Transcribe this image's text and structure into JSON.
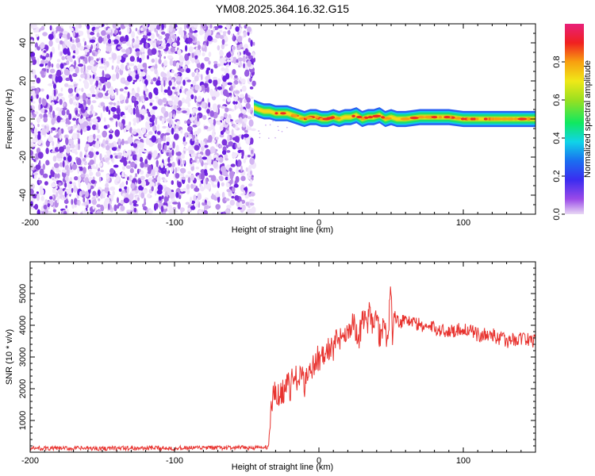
{
  "title": "YM08.2025.364.16.32.G15",
  "chart_data": [
    {
      "type": "heatmap",
      "title": "YM08.2025.364.16.32.G15",
      "xlabel": "Height of straight line (km)",
      "ylabel": "Frequency (Hz)",
      "xlim": [
        -200,
        150
      ],
      "ylim": [
        -50,
        50
      ],
      "x_ticks": [
        -200,
        -100,
        0,
        100
      ],
      "x_tick_labels": [
        "-200",
        "-100",
        "0",
        "100"
      ],
      "y_ticks": [
        -40,
        -20,
        0,
        20,
        40
      ],
      "y_tick_labels": [
        "-40",
        "-20",
        "0",
        "20",
        "40"
      ],
      "noise_region_x": [
        -200,
        -45
      ],
      "signal_region_x": [
        -45,
        150
      ],
      "signal_center_freq_hz": [
        [
          -45,
          6
        ],
        [
          -42,
          5
        ],
        [
          -38,
          4
        ],
        [
          -34,
          4
        ],
        [
          -30,
          3
        ],
        [
          -26,
          3
        ],
        [
          -22,
          3
        ],
        [
          -18,
          2
        ],
        [
          -14,
          1
        ],
        [
          -10,
          0
        ],
        [
          -6,
          1
        ],
        [
          -2,
          1
        ],
        [
          2,
          0
        ],
        [
          6,
          0
        ],
        [
          10,
          1
        ],
        [
          14,
          0
        ],
        [
          18,
          1
        ],
        [
          22,
          1
        ],
        [
          26,
          2
        ],
        [
          30,
          0
        ],
        [
          34,
          1
        ],
        [
          38,
          1
        ],
        [
          42,
          2
        ],
        [
          46,
          0
        ],
        [
          50,
          1
        ],
        [
          54,
          0
        ],
        [
          60,
          0
        ],
        [
          70,
          1
        ],
        [
          80,
          1
        ],
        [
          90,
          1
        ],
        [
          100,
          0
        ],
        [
          110,
          0
        ],
        [
          120,
          0
        ],
        [
          130,
          0
        ],
        [
          140,
          0
        ],
        [
          150,
          0
        ]
      ],
      "colorbar": {
        "label": "Normalized spectral amplitude",
        "range": [
          0,
          1
        ],
        "ticks": [
          0.0,
          0.2,
          0.4,
          0.6,
          0.8
        ],
        "tick_labels": [
          "0.0",
          "0.2",
          "0.4",
          "0.6",
          "0.8"
        ],
        "colormap": "rainbow"
      }
    },
    {
      "type": "line",
      "xlabel": "Height of straight line (km)",
      "ylabel": "SNR (10 * v/v)",
      "xlim": [
        -200,
        150
      ],
      "ylim": [
        0,
        6000
      ],
      "x_ticks": [
        -200,
        -100,
        0,
        100
      ],
      "x_tick_labels": [
        "-200",
        "-100",
        "0",
        "100"
      ],
      "y_ticks": [
        1000,
        2000,
        3000,
        4000,
        5000
      ],
      "y_tick_labels": [
        "1000",
        "2000",
        "3000",
        "4000",
        "5000"
      ],
      "color": "#e8332f",
      "series": [
        {
          "name": "SNR",
          "x": [
            -200,
            -150,
            -100,
            -60,
            -40,
            -35,
            -33,
            -31,
            -30,
            -28,
            -25,
            -22,
            -20,
            -17,
            -15,
            -12,
            -10,
            -7,
            -5,
            -2,
            0,
            3,
            5,
            8,
            10,
            12,
            15,
            18,
            20,
            23,
            25,
            28,
            30,
            33,
            35,
            38,
            40,
            42,
            45,
            47,
            49,
            50,
            51,
            52,
            55,
            60,
            70,
            80,
            90,
            100,
            110,
            120,
            130,
            140,
            150
          ],
          "y": [
            120,
            120,
            130,
            140,
            140,
            160,
            1400,
            1900,
            1700,
            1800,
            1900,
            2200,
            2000,
            2500,
            2200,
            2400,
            2100,
            2700,
            2600,
            2900,
            3000,
            2950,
            3200,
            3300,
            3200,
            3500,
            3600,
            3900,
            3700,
            4100,
            3900,
            3600,
            4200,
            4000,
            4400,
            3800,
            4600,
            3600,
            4000,
            3400,
            4500,
            5500,
            3500,
            4400,
            4100,
            4200,
            4000,
            3900,
            3800,
            3900,
            3700,
            3700,
            3500,
            3600,
            3500
          ]
        }
      ]
    }
  ]
}
